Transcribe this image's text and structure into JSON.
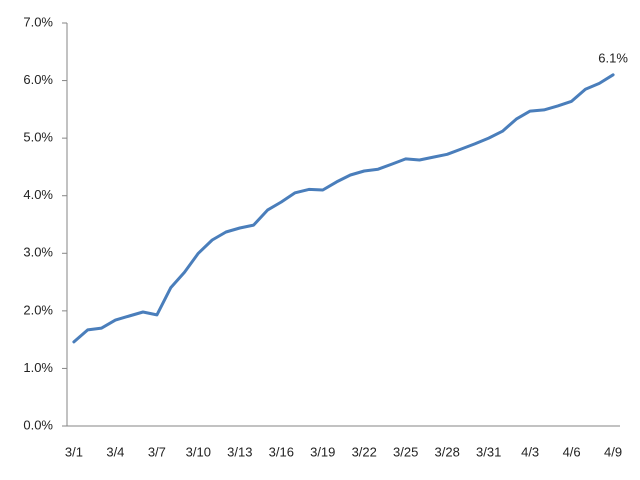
{
  "chart_data": {
    "type": "line",
    "categories": [
      "3/1",
      null,
      null,
      "3/4",
      null,
      null,
      "3/7",
      null,
      null,
      "3/10",
      null,
      null,
      "3/13",
      null,
      null,
      "3/16",
      null,
      null,
      "3/19",
      null,
      null,
      "3/22",
      null,
      null,
      "3/25",
      null,
      null,
      "3/28",
      null,
      null,
      "3/31",
      null,
      null,
      "4/3",
      null,
      null,
      "4/6",
      null,
      null,
      "4/9"
    ],
    "series": [
      {
        "color": "#4a7ebb",
        "values": [
          1.46,
          1.67,
          1.7,
          1.84,
          1.91,
          1.98,
          1.93,
          2.4,
          2.67,
          3.0,
          3.23,
          3.37,
          3.44,
          3.49,
          3.75,
          3.89,
          4.05,
          4.11,
          4.1,
          4.24,
          4.36,
          4.43,
          4.46,
          4.55,
          4.64,
          4.62,
          4.67,
          4.72,
          4.81,
          4.9,
          5.0,
          5.12,
          5.33,
          5.47,
          5.49,
          5.56,
          5.64,
          5.85,
          5.95,
          6.1
        ],
        "value_labels": [
          null,
          null,
          null,
          null,
          null,
          null,
          null,
          null,
          null,
          null,
          null,
          null,
          null,
          null,
          null,
          null,
          null,
          null,
          null,
          null,
          null,
          null,
          null,
          null,
          null,
          null,
          null,
          null,
          null,
          null,
          null,
          null,
          null,
          null,
          null,
          null,
          null,
          null,
          null,
          "6.1%"
        ]
      }
    ],
    "ylim": [
      0,
      7
    ],
    "yticks": [
      {
        "value": 0,
        "label": "0.0%"
      },
      {
        "value": 1,
        "label": "1.0%"
      },
      {
        "value": 2,
        "label": "2.0%"
      },
      {
        "value": 3,
        "label": "3.0%"
      },
      {
        "value": 4,
        "label": "4.0%"
      },
      {
        "value": 5,
        "label": "5.0%"
      },
      {
        "value": 6,
        "label": "6.0%"
      },
      {
        "value": 7,
        "label": "7.0%"
      }
    ],
    "grid": false
  }
}
